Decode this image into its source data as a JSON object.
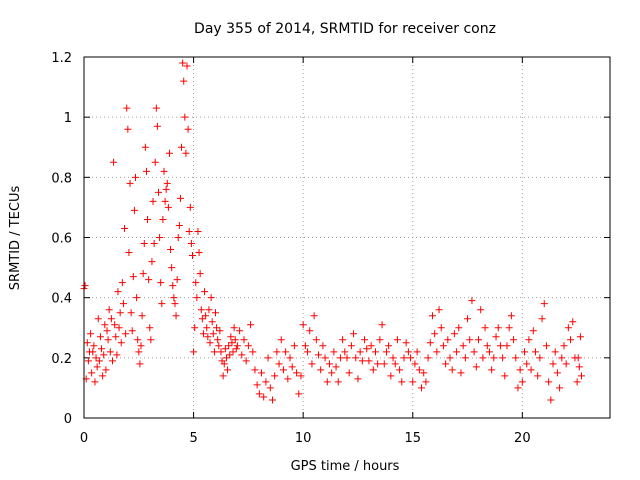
{
  "chart_data": {
    "type": "scatter",
    "title": "Day 355 of 2014, SRMTID for receiver conz",
    "xlabel": "GPS time / hours",
    "ylabel": "SRMTID / TECUs",
    "xlim": [
      0,
      24
    ],
    "ylim": [
      0,
      1.2
    ],
    "xticks": [
      0,
      5,
      10,
      15,
      20
    ],
    "xtick_labels": [
      "0",
      "5",
      "10",
      "15",
      "20"
    ],
    "yticks": [
      0,
      0.2,
      0.4,
      0.6,
      0.8,
      1.0,
      1.2
    ],
    "ytick_labels": [
      "0",
      "0.2",
      "0.4",
      "0.6",
      "0.8",
      "1",
      "1.2"
    ],
    "grid": true,
    "marker": "+",
    "marker_color": "#ff0000",
    "series": [
      {
        "name": "SRMTID",
        "points": [
          [
            0.0,
            0.43
          ],
          [
            0.05,
            0.44
          ],
          [
            0.1,
            0.13
          ],
          [
            0.15,
            0.25
          ],
          [
            0.2,
            0.19
          ],
          [
            0.25,
            0.22
          ],
          [
            0.3,
            0.28
          ],
          [
            0.35,
            0.15
          ],
          [
            0.4,
            0.22
          ],
          [
            0.45,
            0.24
          ],
          [
            0.5,
            0.12
          ],
          [
            0.55,
            0.2
          ],
          [
            0.6,
            0.17
          ],
          [
            0.65,
            0.33
          ],
          [
            0.7,
            0.19
          ],
          [
            0.75,
            0.27
          ],
          [
            0.8,
            0.23
          ],
          [
            0.85,
            0.14
          ],
          [
            0.9,
            0.21
          ],
          [
            0.95,
            0.31
          ],
          [
            1.0,
            0.16
          ],
          [
            1.05,
            0.29
          ],
          [
            1.1,
            0.26
          ],
          [
            1.15,
            0.36
          ],
          [
            1.2,
            0.22
          ],
          [
            1.25,
            0.33
          ],
          [
            1.3,
            0.19
          ],
          [
            1.35,
            0.85
          ],
          [
            1.4,
            0.31
          ],
          [
            1.45,
            0.27
          ],
          [
            1.5,
            0.21
          ],
          [
            1.55,
            0.42
          ],
          [
            1.6,
            0.3
          ],
          [
            1.65,
            0.35
          ],
          [
            1.7,
            0.25
          ],
          [
            1.75,
            0.45
          ],
          [
            1.8,
            0.38
          ],
          [
            1.85,
            0.63
          ],
          [
            1.9,
            0.28
          ],
          [
            1.95,
            1.03
          ],
          [
            2.0,
            0.96
          ],
          [
            2.05,
            0.55
          ],
          [
            2.1,
            0.78
          ],
          [
            2.15,
            0.35
          ],
          [
            2.2,
            0.29
          ],
          [
            2.25,
            0.47
          ],
          [
            2.3,
            0.69
          ],
          [
            2.35,
            0.8
          ],
          [
            2.4,
            0.4
          ],
          [
            2.45,
            0.26
          ],
          [
            2.5,
            0.22
          ],
          [
            2.55,
            0.18
          ],
          [
            2.6,
            0.24
          ],
          [
            2.65,
            0.34
          ],
          [
            2.7,
            0.48
          ],
          [
            2.75,
            0.58
          ],
          [
            2.8,
            0.9
          ],
          [
            2.85,
            0.82
          ],
          [
            2.9,
            0.66
          ],
          [
            2.95,
            0.46
          ],
          [
            3.0,
            0.3
          ],
          [
            3.05,
            0.26
          ],
          [
            3.1,
            0.52
          ],
          [
            3.15,
            0.72
          ],
          [
            3.2,
            0.58
          ],
          [
            3.25,
            0.85
          ],
          [
            3.3,
            1.03
          ],
          [
            3.35,
            0.97
          ],
          [
            3.4,
            0.75
          ],
          [
            3.45,
            0.6
          ],
          [
            3.5,
            0.45
          ],
          [
            3.55,
            0.38
          ],
          [
            3.6,
            0.66
          ],
          [
            3.65,
            0.82
          ],
          [
            3.7,
            0.72
          ],
          [
            3.75,
            0.76
          ],
          [
            3.8,
            0.78
          ],
          [
            3.85,
            0.7
          ],
          [
            3.9,
            0.88
          ],
          [
            3.95,
            0.56
          ],
          [
            4.0,
            0.5
          ],
          [
            4.05,
            0.44
          ],
          [
            4.1,
            0.4
          ],
          [
            4.15,
            0.38
          ],
          [
            4.2,
            0.34
          ],
          [
            4.25,
            0.46
          ],
          [
            4.3,
            0.6
          ],
          [
            4.35,
            0.64
          ],
          [
            4.4,
            0.73
          ],
          [
            4.45,
            0.9
          ],
          [
            4.5,
            1.18
          ],
          [
            4.55,
            1.12
          ],
          [
            4.6,
            1.0
          ],
          [
            4.65,
            0.88
          ],
          [
            4.7,
            1.17
          ],
          [
            4.75,
            0.96
          ],
          [
            4.8,
            0.62
          ],
          [
            4.85,
            0.7
          ],
          [
            4.9,
            0.58
          ],
          [
            4.95,
            0.54
          ],
          [
            5.0,
            0.22
          ],
          [
            5.05,
            0.3
          ],
          [
            5.1,
            0.45
          ],
          [
            5.15,
            0.4
          ],
          [
            5.2,
            0.62
          ],
          [
            5.25,
            0.55
          ],
          [
            5.3,
            0.48
          ],
          [
            5.35,
            0.36
          ],
          [
            5.4,
            0.33
          ],
          [
            5.45,
            0.28
          ],
          [
            5.5,
            0.42
          ],
          [
            5.55,
            0.34
          ],
          [
            5.6,
            0.3
          ],
          [
            5.65,
            0.27
          ],
          [
            5.7,
            0.36
          ],
          [
            5.75,
            0.25
          ],
          [
            5.8,
            0.4
          ],
          [
            5.85,
            0.32
          ],
          [
            5.9,
            0.28
          ],
          [
            5.95,
            0.22
          ],
          [
            6.0,
            0.35
          ],
          [
            6.05,
            0.3
          ],
          [
            6.1,
            0.26
          ],
          [
            6.15,
            0.24
          ],
          [
            6.2,
            0.29
          ],
          [
            6.25,
            0.22
          ],
          [
            6.3,
            0.19
          ],
          [
            6.35,
            0.14
          ],
          [
            6.4,
            0.18
          ],
          [
            6.45,
            0.23
          ],
          [
            6.5,
            0.2
          ],
          [
            6.55,
            0.16
          ],
          [
            6.6,
            0.24
          ],
          [
            6.65,
            0.21
          ],
          [
            6.7,
            0.27
          ],
          [
            6.75,
            0.25
          ],
          [
            6.8,
            0.22
          ],
          [
            6.85,
            0.3
          ],
          [
            6.9,
            0.26
          ],
          [
            6.95,
            0.23
          ],
          [
            7.0,
            0.24
          ],
          [
            7.1,
            0.29
          ],
          [
            7.2,
            0.21
          ],
          [
            7.3,
            0.26
          ],
          [
            7.4,
            0.19
          ],
          [
            7.5,
            0.24
          ],
          [
            7.6,
            0.31
          ],
          [
            7.7,
            0.22
          ],
          [
            7.8,
            0.16
          ],
          [
            7.9,
            0.11
          ],
          [
            8.0,
            0.08
          ],
          [
            8.1,
            0.15
          ],
          [
            8.2,
            0.07
          ],
          [
            8.3,
            0.12
          ],
          [
            8.4,
            0.2
          ],
          [
            8.5,
            0.1
          ],
          [
            8.6,
            0.06
          ],
          [
            8.7,
            0.14
          ],
          [
            8.8,
            0.22
          ],
          [
            8.9,
            0.18
          ],
          [
            9.0,
            0.26
          ],
          [
            9.1,
            0.16
          ],
          [
            9.2,
            0.22
          ],
          [
            9.3,
            0.13
          ],
          [
            9.4,
            0.2
          ],
          [
            9.5,
            0.17
          ],
          [
            9.6,
            0.24
          ],
          [
            9.7,
            0.15
          ],
          [
            9.8,
            0.08
          ],
          [
            9.9,
            0.14
          ],
          [
            10.0,
            0.31
          ],
          [
            10.1,
            0.24
          ],
          [
            10.2,
            0.22
          ],
          [
            10.3,
            0.29
          ],
          [
            10.4,
            0.18
          ],
          [
            10.5,
            0.34
          ],
          [
            10.6,
            0.26
          ],
          [
            10.7,
            0.21
          ],
          [
            10.8,
            0.16
          ],
          [
            10.9,
            0.24
          ],
          [
            11.0,
            0.2
          ],
          [
            11.1,
            0.12
          ],
          [
            11.2,
            0.18
          ],
          [
            11.3,
            0.15
          ],
          [
            11.4,
            0.22
          ],
          [
            11.5,
            0.17
          ],
          [
            11.6,
            0.12
          ],
          [
            11.7,
            0.2
          ],
          [
            11.8,
            0.26
          ],
          [
            11.9,
            0.22
          ],
          [
            12.0,
            0.2
          ],
          [
            12.1,
            0.15
          ],
          [
            12.2,
            0.24
          ],
          [
            12.3,
            0.28
          ],
          [
            12.4,
            0.2
          ],
          [
            12.5,
            0.13
          ],
          [
            12.6,
            0.22
          ],
          [
            12.7,
            0.19
          ],
          [
            12.8,
            0.26
          ],
          [
            12.9,
            0.23
          ],
          [
            13.0,
            0.19
          ],
          [
            13.1,
            0.24
          ],
          [
            13.2,
            0.16
          ],
          [
            13.3,
            0.22
          ],
          [
            13.4,
            0.18
          ],
          [
            13.5,
            0.26
          ],
          [
            13.6,
            0.31
          ],
          [
            13.7,
            0.18
          ],
          [
            13.8,
            0.22
          ],
          [
            13.9,
            0.24
          ],
          [
            14.0,
            0.14
          ],
          [
            14.1,
            0.2
          ],
          [
            14.2,
            0.18
          ],
          [
            14.3,
            0.26
          ],
          [
            14.4,
            0.16
          ],
          [
            14.5,
            0.12
          ],
          [
            14.6,
            0.2
          ],
          [
            14.7,
            0.25
          ],
          [
            14.8,
            0.22
          ],
          [
            14.9,
            0.2
          ],
          [
            15.0,
            0.12
          ],
          [
            15.1,
            0.18
          ],
          [
            15.2,
            0.22
          ],
          [
            15.3,
            0.16
          ],
          [
            15.4,
            0.1
          ],
          [
            15.5,
            0.15
          ],
          [
            15.6,
            0.12
          ],
          [
            15.7,
            0.2
          ],
          [
            15.8,
            0.25
          ],
          [
            15.9,
            0.34
          ],
          [
            16.0,
            0.28
          ],
          [
            16.1,
            0.22
          ],
          [
            16.2,
            0.36
          ],
          [
            16.3,
            0.3
          ],
          [
            16.4,
            0.24
          ],
          [
            16.5,
            0.18
          ],
          [
            16.6,
            0.26
          ],
          [
            16.7,
            0.2
          ],
          [
            16.8,
            0.16
          ],
          [
            16.9,
            0.28
          ],
          [
            17.0,
            0.22
          ],
          [
            17.1,
            0.3
          ],
          [
            17.2,
            0.15
          ],
          [
            17.3,
            0.24
          ],
          [
            17.4,
            0.2
          ],
          [
            17.5,
            0.33
          ],
          [
            17.6,
            0.26
          ],
          [
            17.7,
            0.39
          ],
          [
            17.8,
            0.22
          ],
          [
            17.9,
            0.17
          ],
          [
            18.0,
            0.26
          ],
          [
            18.1,
            0.36
          ],
          [
            18.2,
            0.2
          ],
          [
            18.3,
            0.3
          ],
          [
            18.4,
            0.24
          ],
          [
            18.5,
            0.22
          ],
          [
            18.6,
            0.16
          ],
          [
            18.7,
            0.2
          ],
          [
            18.8,
            0.27
          ],
          [
            18.9,
            0.3
          ],
          [
            19.0,
            0.24
          ],
          [
            19.1,
            0.2
          ],
          [
            19.2,
            0.14
          ],
          [
            19.3,
            0.24
          ],
          [
            19.4,
            0.3
          ],
          [
            19.5,
            0.34
          ],
          [
            19.6,
            0.26
          ],
          [
            19.7,
            0.2
          ],
          [
            19.8,
            0.1
          ],
          [
            19.9,
            0.16
          ],
          [
            20.0,
            0.12
          ],
          [
            20.1,
            0.22
          ],
          [
            20.2,
            0.18
          ],
          [
            20.3,
            0.26
          ],
          [
            20.4,
            0.16
          ],
          [
            20.5,
            0.29
          ],
          [
            20.6,
            0.22
          ],
          [
            20.7,
            0.14
          ],
          [
            20.8,
            0.2
          ],
          [
            20.9,
            0.33
          ],
          [
            21.0,
            0.38
          ],
          [
            21.1,
            0.24
          ],
          [
            21.2,
            0.12
          ],
          [
            21.3,
            0.06
          ],
          [
            21.4,
            0.18
          ],
          [
            21.5,
            0.22
          ],
          [
            21.6,
            0.15
          ],
          [
            21.7,
            0.1
          ],
          [
            21.8,
            0.2
          ],
          [
            21.9,
            0.24
          ],
          [
            22.0,
            0.18
          ],
          [
            22.1,
            0.3
          ],
          [
            22.2,
            0.26
          ],
          [
            22.3,
            0.32
          ],
          [
            22.4,
            0.2
          ],
          [
            22.5,
            0.12
          ],
          [
            22.55,
            0.2
          ],
          [
            22.6,
            0.17
          ],
          [
            22.65,
            0.27
          ],
          [
            22.7,
            0.14
          ]
        ]
      }
    ]
  }
}
